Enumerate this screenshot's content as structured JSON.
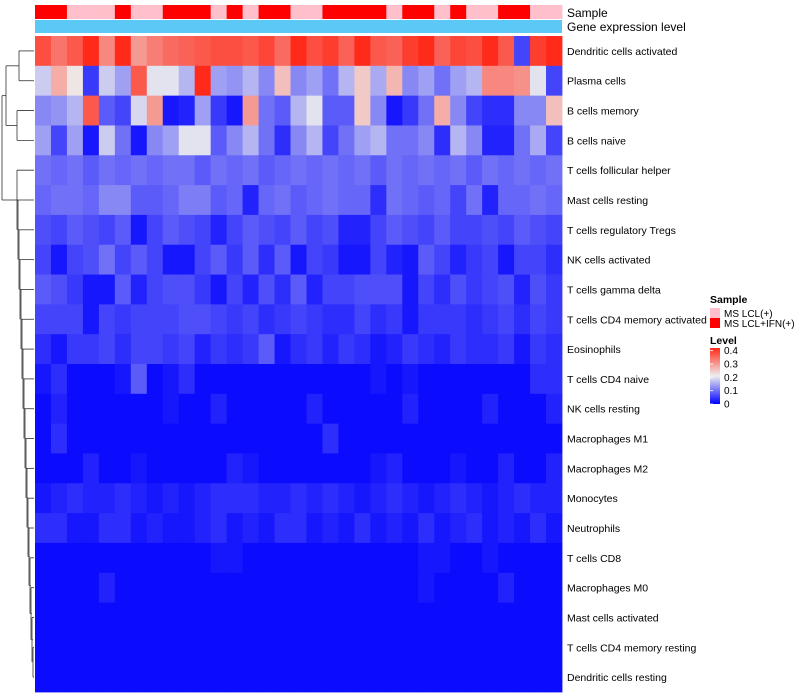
{
  "chart_data": {
    "type": "heatmap",
    "title": "",
    "annotation_tracks": [
      {
        "name": "Sample"
      },
      {
        "name": "Gene expression level"
      }
    ],
    "sample_groups": [
      "MS LCL+IFN(+)",
      "MS LCL+IFN(+)",
      "MS LCL(+)",
      "MS LCL(+)",
      "MS LCL(+)",
      "MS LCL+IFN(+)",
      "MS LCL(+)",
      "MS LCL(+)",
      "MS LCL+IFN(+)",
      "MS LCL+IFN(+)",
      "MS LCL+IFN(+)",
      "MS LCL(+)",
      "MS LCL+IFN(+)",
      "MS LCL(+)",
      "MS LCL+IFN(+)",
      "MS LCL+IFN(+)",
      "MS LCL(+)",
      "MS LCL(+)",
      "MS LCL+IFN(+)",
      "MS LCL+IFN(+)",
      "MS LCL+IFN(+)",
      "MS LCL+IFN(+)",
      "MS LCL(+)",
      "MS LCL+IFN(+)",
      "MS LCL+IFN(+)",
      "MS LCL(+)",
      "MS LCL+IFN(+)",
      "MS LCL(+)",
      "MS LCL(+)",
      "MS LCL+IFN(+)",
      "MS LCL+IFN(+)",
      "MS LCL(+)",
      "MS LCL(+)"
    ],
    "rows": [
      {
        "name": "Dendritic cells activated",
        "values": [
          0.38,
          0.34,
          0.37,
          0.42,
          0.32,
          0.42,
          0.3,
          0.33,
          0.35,
          0.36,
          0.37,
          0.38,
          0.38,
          0.37,
          0.39,
          0.35,
          0.44,
          0.38,
          0.4,
          0.36,
          0.43,
          0.37,
          0.36,
          0.4,
          0.44,
          0.36,
          0.39,
          0.38,
          0.43,
          0.37,
          0.06,
          0.4,
          0.45
        ]
      },
      {
        "name": "Plasma cells",
        "values": [
          0.18,
          0.28,
          0.22,
          0.05,
          0.18,
          0.14,
          0.37,
          0.2,
          0.2,
          0.16,
          0.42,
          0.14,
          0.13,
          0.16,
          0.12,
          0.26,
          0.12,
          0.14,
          0.1,
          0.16,
          0.25,
          0.15,
          0.27,
          0.12,
          0.14,
          0.1,
          0.14,
          0.16,
          0.32,
          0.32,
          0.31,
          0.2,
          0.06
        ]
      },
      {
        "name": "B cells memory",
        "values": [
          0.12,
          0.13,
          0.16,
          0.37,
          0.08,
          0.06,
          0.19,
          0.3,
          0.02,
          0.03,
          0.14,
          0.05,
          0.02,
          0.3,
          0.1,
          0.08,
          0.16,
          0.2,
          0.08,
          0.08,
          0.25,
          0.12,
          0.02,
          0.05,
          0.1,
          0.28,
          0.12,
          0.06,
          0.04,
          0.04,
          0.12,
          0.12,
          0.26
        ]
      },
      {
        "name": "B cells naive",
        "values": [
          0.14,
          0.06,
          0.14,
          0.02,
          0.18,
          0.1,
          0.02,
          0.12,
          0.14,
          0.2,
          0.2,
          0.08,
          0.12,
          0.16,
          0.1,
          0.04,
          0.12,
          0.16,
          0.06,
          0.1,
          0.14,
          0.16,
          0.1,
          0.1,
          0.12,
          0.04,
          0.16,
          0.12,
          0.03,
          0.03,
          0.1,
          0.15,
          0.06
        ]
      },
      {
        "name": "T cells follicular helper",
        "values": [
          0.1,
          0.09,
          0.1,
          0.08,
          0.1,
          0.09,
          0.1,
          0.09,
          0.1,
          0.1,
          0.08,
          0.1,
          0.09,
          0.1,
          0.08,
          0.09,
          0.1,
          0.09,
          0.1,
          0.09,
          0.1,
          0.08,
          0.1,
          0.09,
          0.1,
          0.09,
          0.1,
          0.08,
          0.1,
          0.09,
          0.1,
          0.09,
          0.1
        ]
      },
      {
        "name": "Mast cells resting",
        "values": [
          0.09,
          0.1,
          0.1,
          0.09,
          0.12,
          0.12,
          0.08,
          0.08,
          0.09,
          0.11,
          0.11,
          0.08,
          0.09,
          0.03,
          0.09,
          0.1,
          0.08,
          0.09,
          0.1,
          0.09,
          0.09,
          0.04,
          0.1,
          0.09,
          0.08,
          0.09,
          0.06,
          0.1,
          0.03,
          0.09,
          0.09,
          0.1,
          0.09
        ]
      },
      {
        "name": "T cells regulatory  Tregs",
        "values": [
          0.07,
          0.06,
          0.08,
          0.07,
          0.06,
          0.08,
          0.02,
          0.06,
          0.08,
          0.07,
          0.06,
          0.03,
          0.06,
          0.08,
          0.07,
          0.06,
          0.08,
          0.06,
          0.07,
          0.03,
          0.03,
          0.06,
          0.08,
          0.07,
          0.06,
          0.08,
          0.06,
          0.06,
          0.07,
          0.06,
          0.08,
          0.07,
          0.06
        ]
      },
      {
        "name": "NK cells activated",
        "values": [
          0.06,
          0.02,
          0.06,
          0.07,
          0.1,
          0.06,
          0.08,
          0.06,
          0.02,
          0.02,
          0.06,
          0.08,
          0.05,
          0.08,
          0.04,
          0.08,
          0.02,
          0.06,
          0.05,
          0.02,
          0.02,
          0.06,
          0.03,
          0.02,
          0.08,
          0.06,
          0.03,
          0.05,
          0.06,
          0.02,
          0.06,
          0.06,
          0.04
        ]
      },
      {
        "name": "T cells gamma delta",
        "values": [
          0.08,
          0.07,
          0.05,
          0.02,
          0.02,
          0.08,
          0.03,
          0.06,
          0.07,
          0.07,
          0.05,
          0.02,
          0.06,
          0.03,
          0.07,
          0.04,
          0.08,
          0.03,
          0.06,
          0.06,
          0.07,
          0.07,
          0.07,
          0.02,
          0.06,
          0.04,
          0.07,
          0.05,
          0.06,
          0.07,
          0.03,
          0.07,
          0.05
        ]
      },
      {
        "name": "T cells CD4 memory activated",
        "values": [
          0.06,
          0.06,
          0.06,
          0.02,
          0.06,
          0.05,
          0.06,
          0.06,
          0.06,
          0.07,
          0.07,
          0.06,
          0.05,
          0.06,
          0.04,
          0.05,
          0.06,
          0.05,
          0.04,
          0.04,
          0.06,
          0.04,
          0.05,
          0.02,
          0.05,
          0.05,
          0.05,
          0.04,
          0.05,
          0.06,
          0.04,
          0.06,
          0.05
        ]
      },
      {
        "name": "Eosinophils",
        "values": [
          0.04,
          0.02,
          0.05,
          0.05,
          0.06,
          0.04,
          0.06,
          0.06,
          0.05,
          0.06,
          0.03,
          0.05,
          0.04,
          0.05,
          0.08,
          0.02,
          0.04,
          0.05,
          0.03,
          0.05,
          0.04,
          0.02,
          0.03,
          0.05,
          0.04,
          0.03,
          0.05,
          0.04,
          0.04,
          0.05,
          0.02,
          0.05,
          0.04
        ]
      },
      {
        "name": "T cells CD4 naive",
        "values": [
          0.02,
          0.04,
          0.01,
          0.01,
          0.01,
          0.02,
          0.08,
          0.01,
          0.02,
          0.04,
          0.01,
          0.01,
          0.01,
          0.01,
          0.01,
          0.01,
          0.01,
          0.01,
          0.01,
          0.01,
          0.01,
          0.02,
          0.01,
          0.02,
          0.01,
          0.01,
          0.01,
          0.01,
          0.01,
          0.01,
          0.01,
          0.04,
          0.04
        ]
      },
      {
        "name": "NK cells resting",
        "values": [
          0.01,
          0.03,
          0.01,
          0.01,
          0.01,
          0.01,
          0.01,
          0.01,
          0.02,
          0.01,
          0.01,
          0.03,
          0.01,
          0.01,
          0.01,
          0.01,
          0.01,
          0.03,
          0.01,
          0.01,
          0.01,
          0.01,
          0.01,
          0.03,
          0.01,
          0.01,
          0.01,
          0.01,
          0.03,
          0.01,
          0.01,
          0.01,
          0.03
        ]
      },
      {
        "name": "Macrophages M1",
        "values": [
          0.01,
          0.04,
          0.01,
          0.01,
          0.01,
          0.01,
          0.01,
          0.01,
          0.01,
          0.01,
          0.01,
          0.01,
          0.01,
          0.01,
          0.01,
          0.01,
          0.01,
          0.01,
          0.04,
          0.01,
          0.01,
          0.01,
          0.01,
          0.01,
          0.01,
          0.01,
          0.01,
          0.01,
          0.01,
          0.01,
          0.01,
          0.01,
          0.01
        ]
      },
      {
        "name": "Macrophages M2",
        "values": [
          0.01,
          0.01,
          0.01,
          0.03,
          0.01,
          0.01,
          0.02,
          0.01,
          0.01,
          0.01,
          0.01,
          0.01,
          0.03,
          0.02,
          0.01,
          0.01,
          0.01,
          0.01,
          0.01,
          0.01,
          0.01,
          0.02,
          0.03,
          0.01,
          0.01,
          0.01,
          0.02,
          0.01,
          0.01,
          0.03,
          0.01,
          0.01,
          0.03
        ]
      },
      {
        "name": "Monocytes",
        "values": [
          0.02,
          0.03,
          0.04,
          0.03,
          0.03,
          0.04,
          0.03,
          0.02,
          0.03,
          0.02,
          0.03,
          0.04,
          0.04,
          0.04,
          0.03,
          0.03,
          0.04,
          0.03,
          0.04,
          0.03,
          0.02,
          0.03,
          0.04,
          0.03,
          0.02,
          0.03,
          0.04,
          0.03,
          0.02,
          0.03,
          0.04,
          0.03,
          0.03
        ]
      },
      {
        "name": "Neutrophils",
        "values": [
          0.04,
          0.04,
          0.02,
          0.02,
          0.04,
          0.04,
          0.02,
          0.03,
          0.02,
          0.02,
          0.03,
          0.04,
          0.02,
          0.03,
          0.02,
          0.04,
          0.04,
          0.02,
          0.03,
          0.02,
          0.04,
          0.02,
          0.03,
          0.02,
          0.04,
          0.02,
          0.03,
          0.04,
          0.02,
          0.03,
          0.02,
          0.04,
          0.02
        ]
      },
      {
        "name": "T cells CD8",
        "values": [
          0.01,
          0.01,
          0.01,
          0.01,
          0.01,
          0.01,
          0.01,
          0.01,
          0.01,
          0.01,
          0.01,
          0.02,
          0.02,
          0.01,
          0.01,
          0.01,
          0.01,
          0.01,
          0.01,
          0.01,
          0.01,
          0.01,
          0.01,
          0.01,
          0.02,
          0.02,
          0.01,
          0.01,
          0.02,
          0.01,
          0.01,
          0.01,
          0.01
        ]
      },
      {
        "name": "Macrophages M0",
        "values": [
          0.01,
          0.01,
          0.01,
          0.01,
          0.03,
          0.01,
          0.01,
          0.01,
          0.01,
          0.01,
          0.01,
          0.01,
          0.01,
          0.01,
          0.01,
          0.01,
          0.01,
          0.01,
          0.01,
          0.01,
          0.01,
          0.01,
          0.01,
          0.01,
          0.02,
          0.01,
          0.01,
          0.01,
          0.01,
          0.03,
          0.01,
          0.01,
          0.01
        ]
      },
      {
        "name": "Mast cells activated",
        "values": [
          0.01,
          0.01,
          0.01,
          0.01,
          0.01,
          0.01,
          0.01,
          0.01,
          0.01,
          0.01,
          0.01,
          0.01,
          0.01,
          0.01,
          0.01,
          0.01,
          0.01,
          0.01,
          0.01,
          0.01,
          0.01,
          0.01,
          0.01,
          0.01,
          0.01,
          0.01,
          0.01,
          0.01,
          0.01,
          0.01,
          0.01,
          0.01,
          0.01
        ]
      },
      {
        "name": "T cells CD4 memory resting",
        "values": [
          0.01,
          0.01,
          0.01,
          0.01,
          0.01,
          0.01,
          0.01,
          0.01,
          0.01,
          0.01,
          0.01,
          0.01,
          0.01,
          0.01,
          0.01,
          0.01,
          0.01,
          0.01,
          0.01,
          0.01,
          0.01,
          0.01,
          0.01,
          0.01,
          0.01,
          0.01,
          0.01,
          0.01,
          0.01,
          0.01,
          0.01,
          0.01,
          0.01
        ]
      },
      {
        "name": "Dendritic cells resting",
        "values": [
          0.01,
          0.01,
          0.01,
          0.01,
          0.01,
          0.01,
          0.01,
          0.01,
          0.01,
          0.01,
          0.01,
          0.01,
          0.01,
          0.01,
          0.01,
          0.01,
          0.01,
          0.01,
          0.01,
          0.01,
          0.01,
          0.01,
          0.01,
          0.01,
          0.01,
          0.01,
          0.01,
          0.01,
          0.01,
          0.01,
          0.01,
          0.01,
          0.01
        ]
      }
    ],
    "legend": {
      "sample_title": "Sample",
      "sample_items": [
        {
          "label": "MS LCL(+)",
          "color": "#FFC0CB"
        },
        {
          "label": "MS LCL+IFN(+)",
          "color": "#FF0000"
        }
      ],
      "level_title": "Level",
      "level_ticks": [
        "0.4",
        "0.3",
        "0.2",
        "0.1",
        "0"
      ],
      "level_tick_values": [
        0.4,
        0.3,
        0.2,
        0.1,
        0
      ],
      "level_range": [
        0,
        0.42
      ],
      "placement": "right"
    },
    "colors": {
      "low": "#0000FF",
      "mid": "#EEEEEE",
      "high": "#FF2A1A",
      "expression_track": "#5BC8F5"
    }
  }
}
